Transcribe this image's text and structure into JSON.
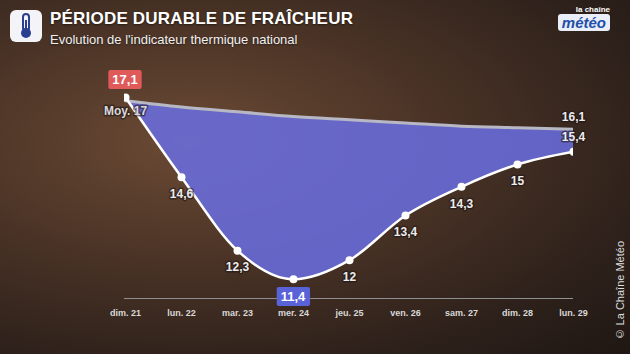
{
  "chart_data": {
    "type": "line",
    "title": "PÉRIODE DURABLE DE FRAÎCHEUR",
    "subtitle": "Evolution de l'indicateur thermique national",
    "logo": [
      "la chaîne",
      "météo"
    ],
    "credit": "© La Chaîne Météo",
    "categories": [
      "dim. 21",
      "lun. 22",
      "mar. 23",
      "mer. 24",
      "jeu. 25",
      "ven. 26",
      "sam. 27",
      "dim. 28",
      "lun. 29"
    ],
    "series": [
      {
        "color": "#ffffff",
        "marker": "circle",
        "values": [
          17.1,
          14.6,
          12.3,
          11.4,
          12,
          13.4,
          14.3,
          15,
          15.4
        ],
        "value_labels": [
          "17,1",
          "14,6",
          "12,3",
          "11,4",
          "12",
          "13,4",
          "14,3",
          "15",
          "15,4"
        ]
      },
      {
        "color": "#b8b8c4",
        "values": [
          17,
          16.8,
          16.65,
          16.5,
          16.4,
          16.3,
          16.2,
          16.15,
          16.1
        ],
        "value_labels": [
          "Moy. 17",
          null,
          null,
          null,
          null,
          null,
          null,
          null,
          "16,1"
        ]
      }
    ],
    "color": "#6a6fe3",
    "ylim": [
      10.8,
      17.6
    ],
    "data_labels": true,
    "tick_labels": "x",
    "grid": false
  }
}
